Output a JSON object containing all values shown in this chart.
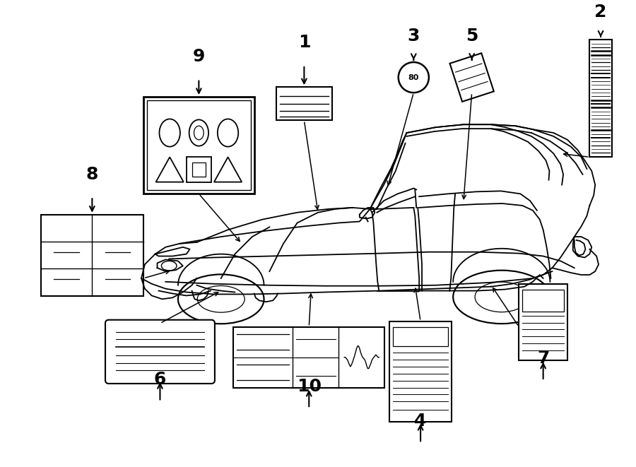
{
  "bg_color": "#ffffff",
  "line_color": "#000000",
  "figsize": [
    9.0,
    6.61
  ],
  "dpi": 100,
  "car_lw": 1.3,
  "label_fontsize": 18,
  "arrow_lw": 1.5
}
